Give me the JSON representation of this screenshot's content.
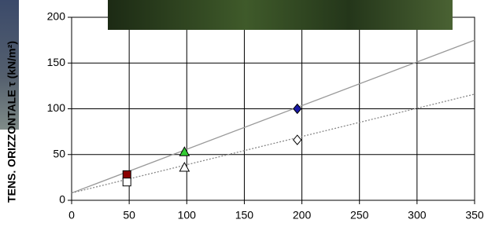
{
  "chart_data": {
    "type": "scatter",
    "y_label": "TENS. ORIZZONTALE τ (kN/m²)",
    "xlim": [
      0,
      350
    ],
    "xticks": [
      0,
      50,
      100,
      150,
      200,
      250,
      300,
      350
    ],
    "ylim": [
      0,
      200
    ],
    "yticks": [
      0,
      50,
      100,
      150,
      200
    ],
    "grid": true,
    "lines": [
      {
        "x": [
          0,
          350
        ],
        "values": [
          8,
          175
        ],
        "color": "#999999",
        "style": "solid"
      },
      {
        "x": [
          0,
          350
        ],
        "values": [
          8,
          116
        ],
        "color": "#888888",
        "style": "dotted"
      }
    ],
    "series": [
      {
        "x": [
          48
        ],
        "values": [
          28
        ],
        "marker": "square",
        "color": "#8b0000"
      },
      {
        "x": [
          48
        ],
        "values": [
          20
        ],
        "marker": "square",
        "color": "#ffffff"
      },
      {
        "x": [
          98
        ],
        "values": [
          53
        ],
        "marker": "triangle",
        "color": "#33cc33"
      },
      {
        "x": [
          98
        ],
        "values": [
          36
        ],
        "marker": "triangle",
        "color": "#ffffff"
      },
      {
        "x": [
          196
        ],
        "values": [
          100
        ],
        "marker": "diamond",
        "color": "#1a1aa6"
      },
      {
        "x": [
          196
        ],
        "values": [
          66
        ],
        "marker": "diamond",
        "color": "#ffffff"
      }
    ]
  }
}
